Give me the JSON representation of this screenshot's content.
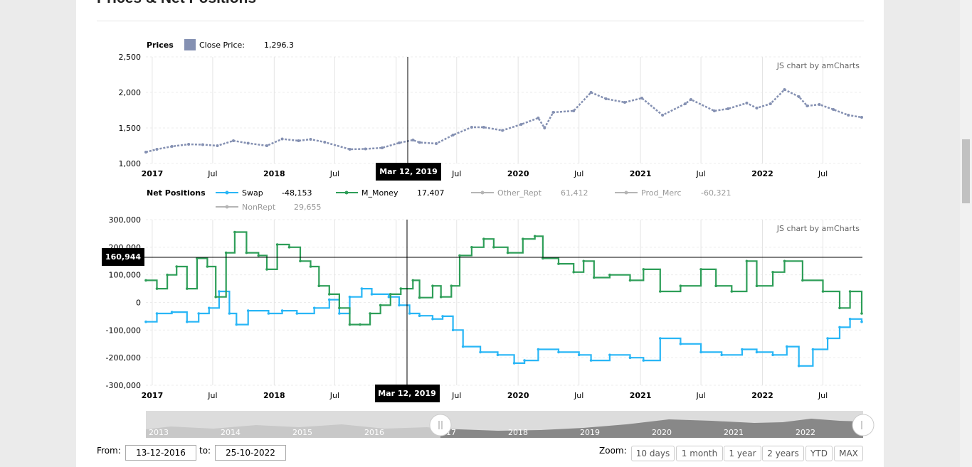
{
  "page": {
    "title": "Prices & Net Positions"
  },
  "price_legend": {
    "title": "Prices",
    "item": "Close Price:",
    "value": "1,296.3",
    "color": "#8490b2"
  },
  "net_legend": {
    "title": "Net Positions",
    "items": [
      {
        "name": "Swap",
        "value": "-48,153",
        "color": "#29b6f6",
        "active": true
      },
      {
        "name": "M_Money",
        "value": "17,407",
        "color": "#2e9e58",
        "active": true
      },
      {
        "name": "Other_Rept",
        "value": "61,412",
        "color": "#b5b5b5",
        "active": false
      },
      {
        "name": "Prod_Merc",
        "value": "-60,321",
        "color": "#b5b5b5",
        "active": false
      },
      {
        "name": "NonRept",
        "value": "29,655",
        "color": "#b5b5b5",
        "active": false
      }
    ]
  },
  "credit": "JS chart by amCharts",
  "cursor": {
    "date_label": "Mar 12, 2019",
    "value_label": "160,944"
  },
  "x_ticks": [
    {
      "label": "2017",
      "bold": true
    },
    {
      "label": "Jul",
      "bold": false
    },
    {
      "label": "2018",
      "bold": true
    },
    {
      "label": "Jul",
      "bold": false
    },
    {
      "label": "2019",
      "bold": true
    },
    {
      "label": "Jul",
      "bold": false
    },
    {
      "label": "2020",
      "bold": true
    },
    {
      "label": "Jul",
      "bold": false
    },
    {
      "label": "2021",
      "bold": true
    },
    {
      "label": "Jul",
      "bold": false
    },
    {
      "label": "2022",
      "bold": true
    },
    {
      "label": "Jul",
      "bold": false
    }
  ],
  "scrollbar_years": [
    "2013",
    "2014",
    "2015",
    "2016",
    "2017",
    "2018",
    "2019",
    "2020",
    "2021",
    "2022"
  ],
  "range": {
    "from_label": "From:",
    "from_value": "13-12-2016",
    "to_label": "to:",
    "to_value": "25-10-2022"
  },
  "zoom": {
    "label": "Zoom:",
    "buttons": [
      "10 days",
      "1 month",
      "1 year",
      "2 years",
      "YTD",
      "MAX"
    ]
  },
  "chart_data": [
    {
      "type": "line",
      "title": "Prices",
      "x_range": [
        "2016-12-13",
        "2022-10-25"
      ],
      "ylim": [
        1000,
        2500
      ],
      "y_ticks": [
        "1,000",
        "1,500",
        "2,000",
        "2,500"
      ],
      "grid": true,
      "series": [
        {
          "name": "Close Price",
          "color": "#8490b2",
          "points": [
            [
              "2016-12-13",
              1160
            ],
            [
              "2017-01-15",
              1200
            ],
            [
              "2017-03-01",
              1240
            ],
            [
              "2017-04-20",
              1270
            ],
            [
              "2017-06-01",
              1265
            ],
            [
              "2017-07-15",
              1250
            ],
            [
              "2017-09-01",
              1320
            ],
            [
              "2017-10-15",
              1285
            ],
            [
              "2017-12-10",
              1250
            ],
            [
              "2018-01-25",
              1345
            ],
            [
              "2018-03-15",
              1320
            ],
            [
              "2018-04-20",
              1340
            ],
            [
              "2018-06-01",
              1300
            ],
            [
              "2018-08-15",
              1200
            ],
            [
              "2018-10-01",
              1205
            ],
            [
              "2018-11-20",
              1220
            ],
            [
              "2019-01-10",
              1290
            ],
            [
              "2019-02-20",
              1330
            ],
            [
              "2019-03-12",
              1296.3
            ],
            [
              "2019-05-01",
              1280
            ],
            [
              "2019-06-20",
              1400
            ],
            [
              "2019-08-15",
              1510
            ],
            [
              "2019-09-20",
              1510
            ],
            [
              "2019-11-15",
              1465
            ],
            [
              "2020-01-10",
              1550
            ],
            [
              "2020-03-01",
              1640
            ],
            [
              "2020-03-20",
              1500
            ],
            [
              "2020-04-15",
              1720
            ],
            [
              "2020-06-15",
              1740
            ],
            [
              "2020-08-06",
              2000
            ],
            [
              "2020-09-20",
              1910
            ],
            [
              "2020-11-15",
              1860
            ],
            [
              "2021-01-05",
              1920
            ],
            [
              "2021-03-08",
              1680
            ],
            [
              "2021-05-15",
              1840
            ],
            [
              "2021-06-01",
              1900
            ],
            [
              "2021-08-10",
              1740
            ],
            [
              "2021-09-20",
              1770
            ],
            [
              "2021-11-15",
              1850
            ],
            [
              "2021-12-15",
              1780
            ],
            [
              "2022-01-25",
              1840
            ],
            [
              "2022-03-08",
              2040
            ],
            [
              "2022-04-20",
              1940
            ],
            [
              "2022-05-15",
              1810
            ],
            [
              "2022-06-20",
              1830
            ],
            [
              "2022-08-01",
              1760
            ],
            [
              "2022-09-15",
              1680
            ],
            [
              "2022-10-25",
              1650
            ]
          ]
        }
      ]
    },
    {
      "type": "line",
      "title": "Net Positions",
      "x_range": [
        "2016-12-13",
        "2022-10-25"
      ],
      "ylim": [
        -300000,
        300000
      ],
      "y_ticks": [
        "-300,000",
        "-200,000",
        "-100,000",
        "0",
        "100,000",
        "200,000",
        "300,000"
      ],
      "grid": true,
      "series": [
        {
          "name": "Swap",
          "color": "#29b6f6",
          "points": [
            [
              "2016-12-13",
              -70000
            ],
            [
              "2017-01-15",
              -40000
            ],
            [
              "2017-03-01",
              -35000
            ],
            [
              "2017-04-15",
              -70000
            ],
            [
              "2017-05-20",
              -40000
            ],
            [
              "2017-06-20",
              -20000
            ],
            [
              "2017-07-20",
              40000
            ],
            [
              "2017-08-20",
              -40000
            ],
            [
              "2017-09-10",
              -80000
            ],
            [
              "2017-10-15",
              -30000
            ],
            [
              "2017-12-15",
              -40000
            ],
            [
              "2018-01-25",
              -30000
            ],
            [
              "2018-03-10",
              -40000
            ],
            [
              "2018-05-01",
              -20000
            ],
            [
              "2018-06-15",
              10000
            ],
            [
              "2018-07-15",
              -40000
            ],
            [
              "2018-08-15",
              20000
            ],
            [
              "2018-09-20",
              50000
            ],
            [
              "2018-10-20",
              30000
            ],
            [
              "2018-12-10",
              20000
            ],
            [
              "2019-01-10",
              -10000
            ],
            [
              "2019-02-10",
              -40000
            ],
            [
              "2019-03-12",
              -48153
            ],
            [
              "2019-04-20",
              -60000
            ],
            [
              "2019-05-20",
              -50000
            ],
            [
              "2019-06-20",
              -100000
            ],
            [
              "2019-07-20",
              -160000
            ],
            [
              "2019-09-10",
              -180000
            ],
            [
              "2019-11-01",
              -190000
            ],
            [
              "2019-12-20",
              -220000
            ],
            [
              "2020-01-20",
              -210000
            ],
            [
              "2020-03-01",
              -170000
            ],
            [
              "2020-05-01",
              -180000
            ],
            [
              "2020-07-01",
              -190000
            ],
            [
              "2020-08-06",
              -210000
            ],
            [
              "2020-10-01",
              -190000
            ],
            [
              "2020-12-01",
              -200000
            ],
            [
              "2021-01-10",
              -210000
            ],
            [
              "2021-03-01",
              -130000
            ],
            [
              "2021-05-01",
              -150000
            ],
            [
              "2021-07-01",
              -180000
            ],
            [
              "2021-09-01",
              -190000
            ],
            [
              "2021-11-01",
              -170000
            ],
            [
              "2021-12-15",
              -180000
            ],
            [
              "2022-02-01",
              -190000
            ],
            [
              "2022-03-15",
              -160000
            ],
            [
              "2022-04-20",
              -230000
            ],
            [
              "2022-06-01",
              -170000
            ],
            [
              "2022-07-15",
              -130000
            ],
            [
              "2022-08-20",
              -90000
            ],
            [
              "2022-09-20",
              -60000
            ],
            [
              "2022-10-25",
              -70000
            ]
          ]
        },
        {
          "name": "M_Money",
          "color": "#2e9e58",
          "points": [
            [
              "2016-12-13",
              80000
            ],
            [
              "2017-01-15",
              50000
            ],
            [
              "2017-02-15",
              100000
            ],
            [
              "2017-03-15",
              130000
            ],
            [
              "2017-04-15",
              50000
            ],
            [
              "2017-05-15",
              160000
            ],
            [
              "2017-06-15",
              130000
            ],
            [
              "2017-07-10",
              20000
            ],
            [
              "2017-08-10",
              180000
            ],
            [
              "2017-09-05",
              255000
            ],
            [
              "2017-10-10",
              180000
            ],
            [
              "2017-11-15",
              170000
            ],
            [
              "2017-12-10",
              120000
            ],
            [
              "2018-01-10",
              210000
            ],
            [
              "2018-02-15",
              200000
            ],
            [
              "2018-03-20",
              150000
            ],
            [
              "2018-04-20",
              130000
            ],
            [
              "2018-05-15",
              60000
            ],
            [
              "2018-06-15",
              30000
            ],
            [
              "2018-07-15",
              -20000
            ],
            [
              "2018-08-15",
              -80000
            ],
            [
              "2018-09-15",
              -80000
            ],
            [
              "2018-10-15",
              -40000
            ],
            [
              "2018-11-15",
              -10000
            ],
            [
              "2018-12-15",
              30000
            ],
            [
              "2019-01-15",
              50000
            ],
            [
              "2019-02-20",
              80000
            ],
            [
              "2019-03-12",
              17407
            ],
            [
              "2019-04-20",
              60000
            ],
            [
              "2019-05-15",
              20000
            ],
            [
              "2019-06-15",
              60000
            ],
            [
              "2019-07-10",
              170000
            ],
            [
              "2019-08-15",
              200000
            ],
            [
              "2019-09-20",
              230000
            ],
            [
              "2019-10-20",
              200000
            ],
            [
              "2019-12-01",
              180000
            ],
            [
              "2020-01-15",
              230000
            ],
            [
              "2020-02-20",
              240000
            ],
            [
              "2020-03-15",
              160000
            ],
            [
              "2020-05-01",
              140000
            ],
            [
              "2020-06-15",
              110000
            ],
            [
              "2020-07-15",
              150000
            ],
            [
              "2020-08-15",
              90000
            ],
            [
              "2020-10-01",
              100000
            ],
            [
              "2020-12-01",
              80000
            ],
            [
              "2021-01-10",
              120000
            ],
            [
              "2021-03-01",
              40000
            ],
            [
              "2021-05-01",
              60000
            ],
            [
              "2021-07-01",
              120000
            ],
            [
              "2021-08-15",
              60000
            ],
            [
              "2021-10-01",
              40000
            ],
            [
              "2021-11-15",
              150000
            ],
            [
              "2021-12-15",
              60000
            ],
            [
              "2022-02-01",
              110000
            ],
            [
              "2022-03-08",
              150000
            ],
            [
              "2022-05-01",
              80000
            ],
            [
              "2022-07-01",
              40000
            ],
            [
              "2022-08-20",
              -20000
            ],
            [
              "2022-09-20",
              40000
            ],
            [
              "2022-10-25",
              -40000
            ]
          ]
        }
      ]
    }
  ]
}
